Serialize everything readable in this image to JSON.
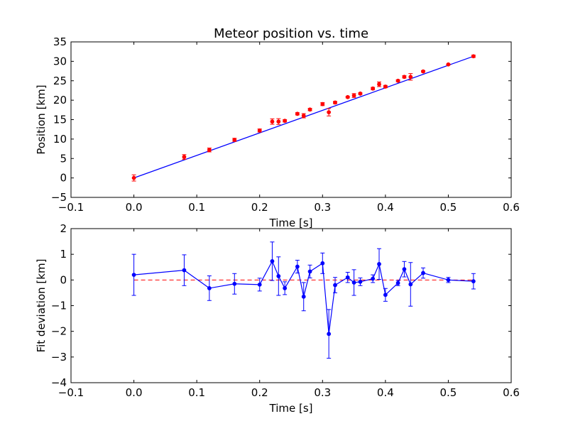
{
  "chart_data": [
    {
      "type": "scatter",
      "title": "Meteor position vs. time",
      "xlabel": "Time [s]",
      "ylabel": "Position [km]",
      "xlim": [
        -0.1,
        0.6
      ],
      "ylim": [
        -5,
        35
      ],
      "xticks": [
        "−0.1",
        "0.0",
        "0.1",
        "0.2",
        "0.3",
        "0.4",
        "0.5",
        "0.6"
      ],
      "yticks": [
        "−5",
        "0",
        "5",
        "10",
        "15",
        "20",
        "25",
        "30",
        "35"
      ],
      "grid": false,
      "colors": {
        "points": "#ff0000",
        "errorbars": "#ff0000",
        "fit": "#0000ff"
      },
      "fit_line": {
        "x": [
          0.0,
          0.54
        ],
        "y": [
          0.0,
          31.3
        ]
      },
      "series": [
        {
          "x": [
            0.0,
            0.08,
            0.12,
            0.16,
            0.2,
            0.22,
            0.23,
            0.24,
            0.26,
            0.27,
            0.28,
            0.3,
            0.31,
            0.32,
            0.34,
            0.35,
            0.36,
            0.38,
            0.39,
            0.4,
            0.42,
            0.43,
            0.44,
            0.46,
            0.5,
            0.54
          ],
          "y": [
            0.0,
            5.4,
            7.2,
            9.8,
            12.2,
            14.5,
            14.5,
            14.7,
            16.5,
            16.0,
            17.6,
            19.0,
            16.9,
            19.4,
            20.8,
            21.2,
            21.7,
            23.0,
            24.1,
            23.5,
            25.0,
            26.0,
            26.0,
            27.4,
            29.2,
            31.3
          ],
          "yerr": [
            0.8,
            0.6,
            0.5,
            0.4,
            0.4,
            0.7,
            0.75,
            0.3,
            0.3,
            0.55,
            0.3,
            0.4,
            0.95,
            0.3,
            0.2,
            0.5,
            0.2,
            0.3,
            0.6,
            0.3,
            0.25,
            0.3,
            0.85,
            0.2,
            0.1,
            0.3
          ]
        }
      ]
    },
    {
      "type": "line",
      "title": "",
      "xlabel": "Time [s]",
      "ylabel": "Fit deviation [km]",
      "xlim": [
        -0.1,
        0.6
      ],
      "ylim": [
        -4,
        2
      ],
      "xticks": [
        "−0.1",
        "0.0",
        "0.1",
        "0.2",
        "0.3",
        "0.4",
        "0.5",
        "0.6"
      ],
      "yticks": [
        "−4",
        "−3",
        "−2",
        "−1",
        "0",
        "1",
        "2"
      ],
      "grid": false,
      "colors": {
        "series": "#0000ff",
        "zero_line": "#ff0000"
      },
      "zero_line": 0,
      "series": [
        {
          "x": [
            0.0,
            0.08,
            0.12,
            0.16,
            0.2,
            0.22,
            0.23,
            0.24,
            0.26,
            0.27,
            0.28,
            0.3,
            0.31,
            0.32,
            0.34,
            0.35,
            0.36,
            0.38,
            0.39,
            0.4,
            0.42,
            0.43,
            0.44,
            0.46,
            0.5,
            0.54
          ],
          "y": [
            0.2,
            0.38,
            -0.32,
            -0.15,
            -0.18,
            0.73,
            0.15,
            -0.32,
            0.52,
            -0.65,
            0.33,
            0.65,
            -2.1,
            -0.2,
            0.1,
            -0.1,
            -0.07,
            0.05,
            0.62,
            -0.58,
            -0.12,
            0.42,
            -0.17,
            0.27,
            0.0,
            -0.05
          ],
          "yerr": [
            0.8,
            0.6,
            0.48,
            0.4,
            0.25,
            0.75,
            0.75,
            0.25,
            0.25,
            0.55,
            0.25,
            0.4,
            0.95,
            0.3,
            0.2,
            0.5,
            0.15,
            0.15,
            0.6,
            0.25,
            0.1,
            0.3,
            0.85,
            0.2,
            0.1,
            0.3
          ]
        }
      ]
    }
  ]
}
